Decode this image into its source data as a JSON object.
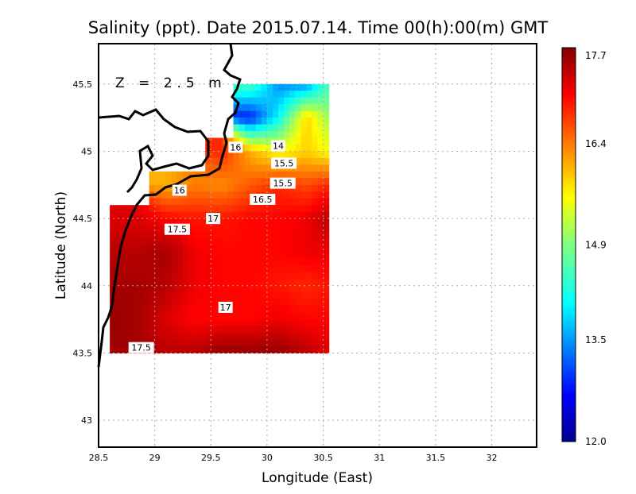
{
  "chart_data": {
    "type": "heatmap",
    "title": "Salinity (ppt). Date 2015.07.14. Time 00(h):00(m) GMT",
    "annotation": "Z = 2.5 m",
    "xlabel": "Longitude (East)",
    "ylabel": "Latitude (North)",
    "xlim": [
      28.5,
      32.4
    ],
    "ylim": [
      42.8,
      45.8
    ],
    "xticks": [
      "28.5",
      "29",
      "29.5",
      "30",
      "30.5",
      "31",
      "31.5",
      "32"
    ],
    "xtick_values": [
      28.5,
      29,
      29.5,
      30,
      30.5,
      31,
      31.5,
      32
    ],
    "yticks": [
      "43",
      "43.5",
      "44",
      "44.5",
      "45",
      "45.5"
    ],
    "ytick_values": [
      43,
      43.5,
      44,
      44.5,
      45,
      45.5
    ],
    "grid": true,
    "colorbar": {
      "min": 12.0,
      "max": 17.7,
      "labels": [
        "17.7",
        "16.4",
        "14.9",
        "13.5",
        "12.0"
      ],
      "label_values": [
        17.7,
        16.4,
        14.9,
        13.5,
        12.0
      ]
    },
    "grid_lon": [
      28.6,
      28.85,
      29.1,
      29.35,
      29.6,
      29.85,
      30.1,
      30.35,
      30.55
    ],
    "grid_lat": [
      45.5,
      45.25,
      45.0,
      44.75,
      44.5,
      44.25,
      44.0,
      43.75,
      43.5
    ],
    "values": [
      [
        null,
        null,
        null,
        null,
        null,
        14.5,
        13.4,
        13.4,
        14.5
      ],
      [
        null,
        null,
        null,
        null,
        null,
        12.8,
        14.0,
        15.8,
        15.0
      ],
      [
        null,
        null,
        null,
        null,
        16.8,
        16.0,
        15.5,
        15.8,
        15.5
      ],
      [
        null,
        null,
        16.0,
        16.3,
        16.2,
        16.5,
        16.8,
        16.6,
        16.8
      ],
      [
        17.2,
        17.2,
        17.0,
        16.9,
        16.9,
        17.0,
        17.0,
        17.1,
        17.4
      ],
      [
        17.4,
        17.4,
        17.5,
        17.1,
        17.0,
        17.0,
        17.0,
        17.1,
        17.1
      ],
      [
        17.5,
        17.5,
        17.4,
        17.1,
        17.0,
        17.0,
        16.9,
        16.8,
        16.9
      ],
      [
        17.6,
        17.5,
        17.2,
        17.0,
        17.0,
        17.0,
        17.1,
        17.0,
        17.0
      ],
      [
        17.5,
        17.5,
        17.4,
        17.4,
        17.6,
        17.6,
        17.6,
        17.4,
        17.2
      ]
    ],
    "contour_labels": [
      {
        "text": "16",
        "lon": 29.72,
        "lat": 45.03
      },
      {
        "text": "14",
        "lon": 30.1,
        "lat": 45.04
      },
      {
        "text": "15.5",
        "lon": 30.15,
        "lat": 45.0
      },
      {
        "text": "15.5",
        "lon": 30.14,
        "lat": 44.94
      },
      {
        "text": "16.5",
        "lon": 29.96,
        "lat": 44.82
      },
      {
        "text": "16",
        "lon": 29.22,
        "lat": 44.71
      },
      {
        "text": "17",
        "lon": 29.52,
        "lat": 44.5
      },
      {
        "text": "17.5",
        "lon": 29.2,
        "lat": 44.42
      },
      {
        "text": "17",
        "lon": 29.63,
        "lat": 43.84
      },
      {
        "text": "17.5",
        "lon": 28.88,
        "lat": 43.54
      }
    ]
  }
}
